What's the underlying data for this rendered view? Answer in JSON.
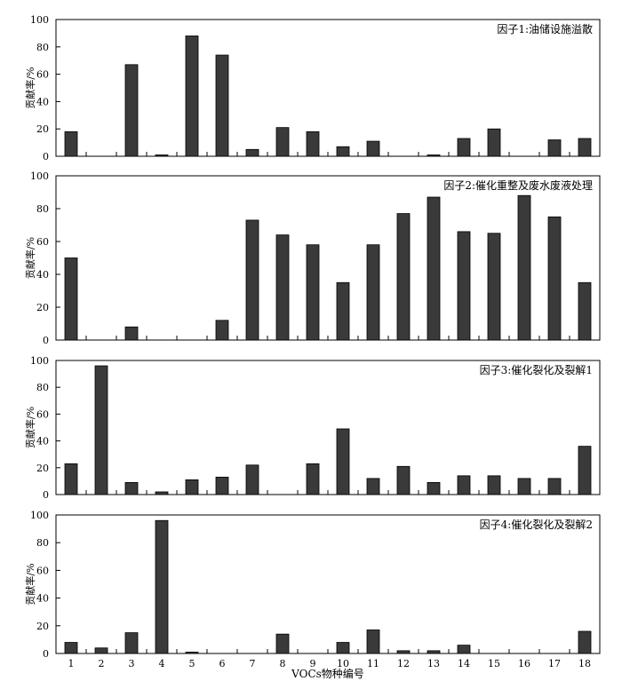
{
  "xlabel": "VOCs物种编号",
  "categories": [
    "1",
    "2",
    "3",
    "4",
    "5",
    "6",
    "7",
    "8",
    "9",
    "10",
    "11",
    "12",
    "13",
    "14",
    "15",
    "16",
    "17",
    "18"
  ],
  "chart_data": [
    {
      "type": "bar",
      "title": "因子1:油储设施溢散",
      "ylabel": "贡献率/%",
      "ylim": [
        0,
        100
      ],
      "yticks": [
        0,
        20,
        40,
        60,
        80,
        100
      ],
      "categories": [
        "1",
        "2",
        "3",
        "4",
        "5",
        "6",
        "7",
        "8",
        "9",
        "10",
        "11",
        "12",
        "13",
        "14",
        "15",
        "16",
        "17",
        "18"
      ],
      "values": [
        18,
        0,
        67,
        1,
        88,
        74,
        5,
        21,
        18,
        7,
        11,
        0,
        1,
        13,
        20,
        0,
        12,
        13
      ],
      "legend": "top-right",
      "grid": false
    },
    {
      "type": "bar",
      "title": "因子2:催化重整及废水废液处理",
      "ylabel": "贡献率/%",
      "ylim": [
        0,
        100
      ],
      "yticks": [
        0,
        20,
        40,
        60,
        80,
        100
      ],
      "categories": [
        "1",
        "2",
        "3",
        "4",
        "5",
        "6",
        "7",
        "8",
        "9",
        "10",
        "11",
        "12",
        "13",
        "14",
        "15",
        "16",
        "17",
        "18"
      ],
      "values": [
        50,
        0,
        8,
        0,
        0,
        12,
        73,
        64,
        58,
        35,
        58,
        77,
        87,
        66,
        65,
        88,
        75,
        35
      ],
      "legend": "top-right",
      "grid": false
    },
    {
      "type": "bar",
      "title": "因子3:催化裂化及裂解1",
      "ylabel": "贡献率/%",
      "ylim": [
        0,
        100
      ],
      "yticks": [
        0,
        20,
        40,
        60,
        80,
        100
      ],
      "categories": [
        "1",
        "2",
        "3",
        "4",
        "5",
        "6",
        "7",
        "8",
        "9",
        "10",
        "11",
        "12",
        "13",
        "14",
        "15",
        "16",
        "17",
        "18"
      ],
      "values": [
        23,
        96,
        9,
        2,
        11,
        13,
        22,
        0,
        23,
        49,
        12,
        21,
        9,
        14,
        14,
        12,
        12,
        36
      ],
      "legend": "top-right",
      "grid": false
    },
    {
      "type": "bar",
      "title": "因子4:催化裂化及裂解2",
      "ylabel": "贡献率/%",
      "ylim": [
        0,
        100
      ],
      "yticks": [
        0,
        20,
        40,
        60,
        80,
        100
      ],
      "categories": [
        "1",
        "2",
        "3",
        "4",
        "5",
        "6",
        "7",
        "8",
        "9",
        "10",
        "11",
        "12",
        "13",
        "14",
        "15",
        "16",
        "17",
        "18"
      ],
      "values": [
        8,
        4,
        15,
        96,
        1,
        0,
        0,
        14,
        0,
        8,
        17,
        2,
        2,
        6,
        0,
        0,
        0,
        16
      ],
      "legend": "top-right",
      "grid": false
    }
  ],
  "colors": {
    "bar_fill": "#3a3a3a",
    "axis": "#000000"
  }
}
